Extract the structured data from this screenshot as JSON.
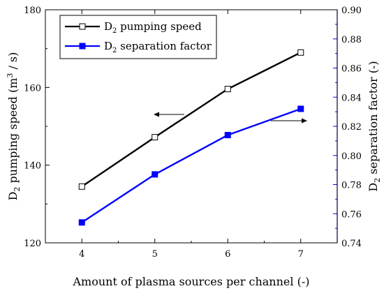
{
  "chart_data": {
    "type": "line",
    "x": [
      4,
      5,
      6,
      7
    ],
    "xlim": [
      3.5,
      7.5
    ],
    "xticks": [
      4,
      5,
      6,
      7
    ],
    "xlabel": "Amount of plasma sources per channel (-)",
    "y_left": {
      "label_main": "D",
      "label_sub": "2",
      "label_rest": " pumping speed (m",
      "label_sup": "3",
      "label_end": " / s)",
      "lim": [
        120,
        180
      ],
      "ticks": [
        120,
        140,
        160,
        180
      ],
      "color": "#000000"
    },
    "y_right": {
      "label_main": "D",
      "label_sub": "2",
      "label_rest": " separation factor (-)",
      "lim": [
        0.74,
        0.9
      ],
      "ticks": [
        "0.74",
        "0.76",
        "0.78",
        "0.80",
        "0.82",
        "0.84",
        "0.86",
        "0.88",
        "0.90"
      ],
      "color": "#0000ff"
    },
    "series": [
      {
        "name_main": "D",
        "name_sub": "2",
        "name_rest": " pumping speed",
        "axis": "left",
        "color": "#000000",
        "marker": "open-square",
        "values": [
          134.5,
          147.2,
          159.6,
          169.0
        ]
      },
      {
        "name_main": "D",
        "name_sub": "2",
        "name_rest": " separation factor",
        "axis": "right",
        "color": "#0000ff",
        "marker": "filled-square",
        "values": [
          0.754,
          0.787,
          0.814,
          0.832
        ]
      }
    ],
    "legend": "top-left",
    "annotations": [
      {
        "type": "arrow",
        "direction": "left",
        "points_to": "left-axis"
      },
      {
        "type": "arrow",
        "direction": "right",
        "points_to": "right-axis"
      }
    ]
  }
}
